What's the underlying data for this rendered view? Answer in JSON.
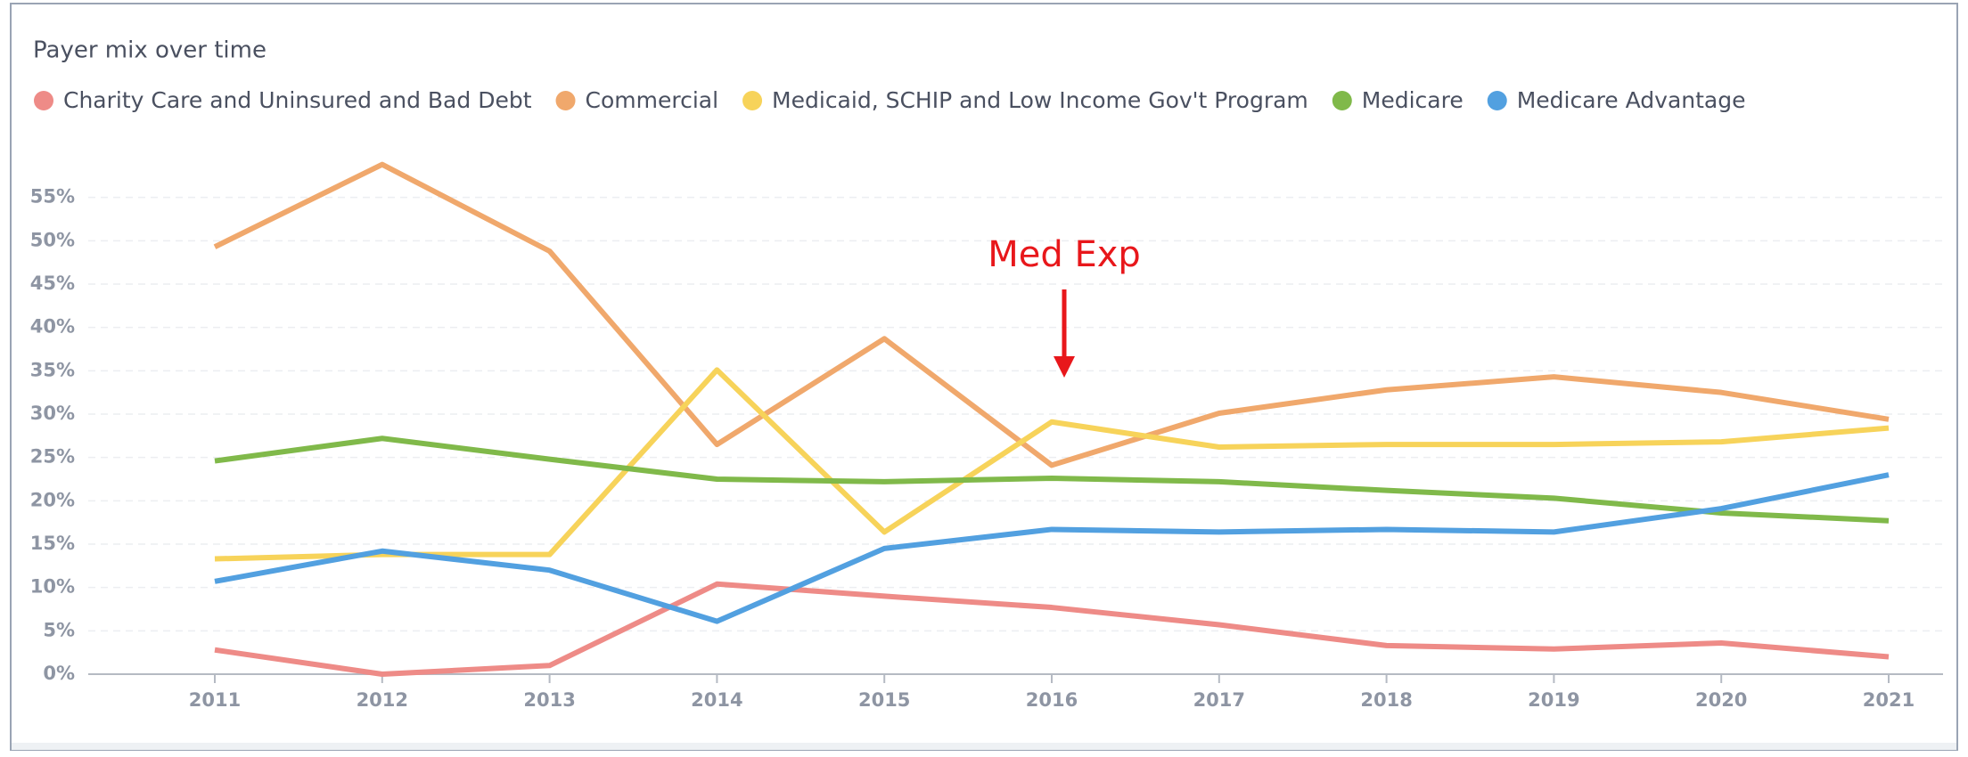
{
  "chart_data": {
    "type": "line",
    "title": "Payer mix over time",
    "categories": [
      "2011",
      "2012",
      "2013",
      "2014",
      "2015",
      "2016",
      "2017",
      "2018",
      "2019",
      "2020",
      "2021"
    ],
    "series": [
      {
        "name": "Charity Care and Uninsured and Bad Debt",
        "color": "#ee8b87",
        "values": [
          2.8,
          0,
          1.0,
          10.4,
          9.0,
          7.7,
          5.7,
          3.3,
          2.9,
          3.6,
          2.0
        ]
      },
      {
        "name": "Commercial",
        "color": "#f0a86c",
        "values": [
          49.3,
          58.8,
          48.8,
          26.5,
          38.7,
          24.1,
          30.1,
          32.8,
          34.3,
          32.5,
          29.4
        ]
      },
      {
        "name": "Medicaid, SCHIP and Low Income Gov't Program",
        "color": "#f7d35a",
        "values": [
          13.3,
          13.8,
          13.8,
          35.1,
          16.4,
          29.1,
          26.2,
          26.5,
          26.5,
          26.8,
          28.4
        ]
      },
      {
        "name": "Medicare",
        "color": "#80b94a",
        "values": [
          24.6,
          27.2,
          24.8,
          22.5,
          22.2,
          22.6,
          22.2,
          21.2,
          20.3,
          18.6,
          17.7
        ]
      },
      {
        "name": "Medicare Advantage",
        "color": "#52a0e0",
        "values": [
          10.7,
          14.2,
          12.0,
          6.1,
          14.5,
          16.7,
          16.4,
          16.7,
          16.4,
          19.1,
          23.0
        ]
      }
    ],
    "ylim": [
      0,
      60
    ],
    "yticks": [
      {
        "value": 0,
        "label": "0%"
      },
      {
        "value": 5,
        "label": "5%"
      },
      {
        "value": 10,
        "label": "10%"
      },
      {
        "value": 15,
        "label": "15%"
      },
      {
        "value": 20,
        "label": "20%"
      },
      {
        "value": 25,
        "label": "25%"
      },
      {
        "value": 30,
        "label": "30%"
      },
      {
        "value": 35,
        "label": "35%"
      },
      {
        "value": 40,
        "label": "40%"
      },
      {
        "value": 45,
        "label": "45%"
      },
      {
        "value": 50,
        "label": "50%"
      },
      {
        "value": 55,
        "label": "55%"
      }
    ],
    "grid": true,
    "legend": "top",
    "annotations": [
      {
        "text": "Med Exp",
        "x": "2016"
      }
    ]
  }
}
